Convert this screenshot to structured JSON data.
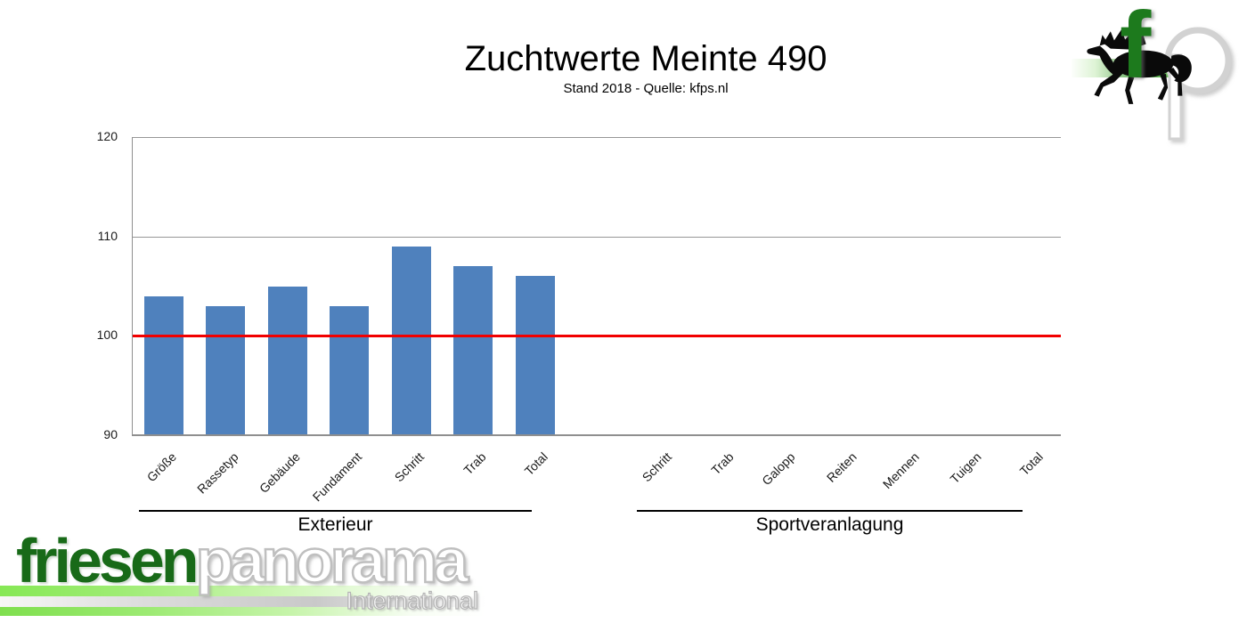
{
  "header": {
    "title": "Zuchtwerte Meinte 490",
    "subtitle": "Stand 2018 - Quelle: kfps.nl"
  },
  "chart_data": {
    "type": "bar",
    "title": "Zuchtwerte Meinte 490",
    "subtitle": "Stand 2018 - Quelle: kfps.nl",
    "categories": [
      "Größe",
      "Rassetyp",
      "Gebäude",
      "Fundament",
      "Schritt",
      "Trab",
      "Total",
      "",
      "Schritt",
      "Trab",
      "Galopp",
      "Reiten",
      "Mennen",
      "Tuigen",
      "Total"
    ],
    "values": [
      104,
      103,
      105,
      103,
      109,
      107,
      106,
      null,
      null,
      null,
      null,
      null,
      null,
      null,
      null
    ],
    "group_axis": [
      {
        "label": "Exterieur",
        "start_index": 0,
        "end_index": 6
      },
      {
        "label": "Sportveranlagung",
        "start_index": 8,
        "end_index": 14
      }
    ],
    "xlabel": "",
    "ylabel": "",
    "ylim": [
      90,
      120
    ],
    "yticks": [
      90,
      100,
      110,
      120
    ],
    "reference_line": {
      "value": 100,
      "color": "#f20000"
    },
    "bar_color": "#4f81bd",
    "grid_color": "#979797",
    "axis_color": "#8f8f8f",
    "grid": "horizontal-only",
    "legend": "none"
  },
  "logos": {
    "fp": {
      "letter_f": "f",
      "letter_p": "p",
      "horse": "black-friesian-horse-silhouette",
      "f_color": "#1d7a1d",
      "band_color": "#4a9e44"
    },
    "friesenpanorama": {
      "part1": "friesen",
      "part2": "panorama",
      "tagline": "International",
      "part1_color": "#186a18"
    }
  }
}
